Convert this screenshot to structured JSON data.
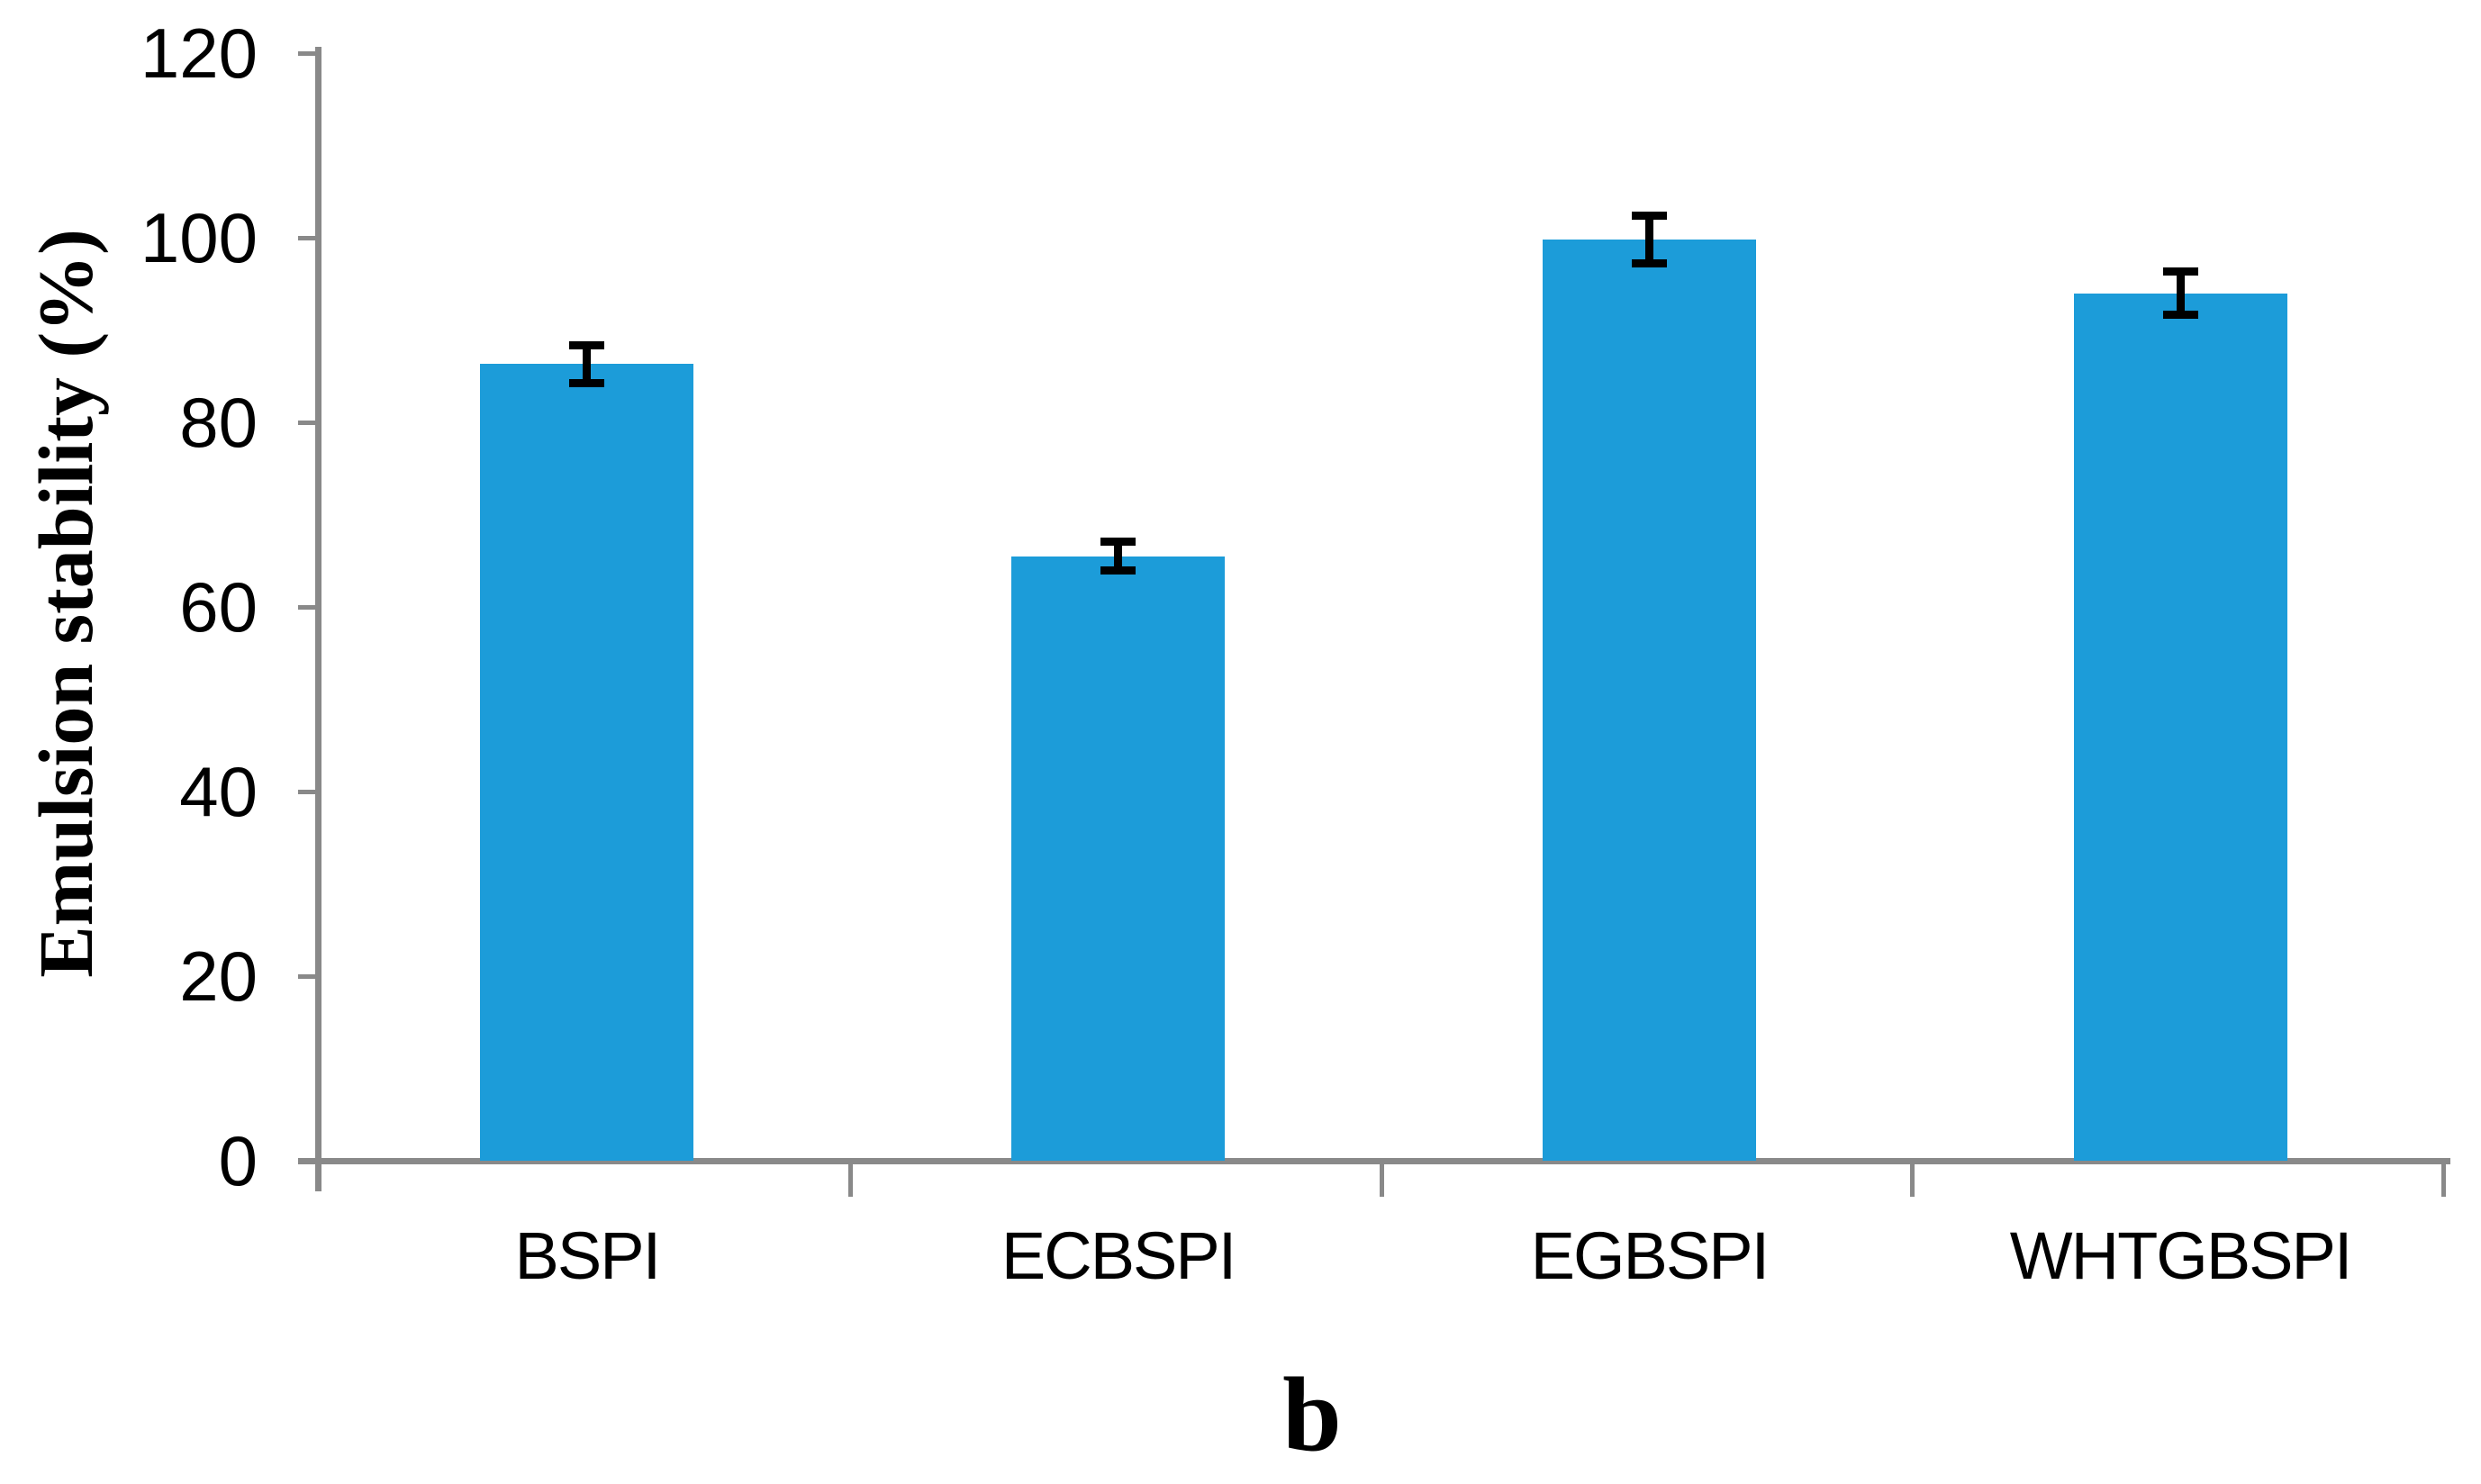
{
  "chart_data": {
    "type": "bar",
    "title": "",
    "caption": "b",
    "ylabel": "Emulsion stability (%)",
    "xlabel": "",
    "categories": [
      "BSPI",
      "ECBSPI",
      "EGBSPI",
      "WHTGBSPI"
    ],
    "values": [
      86.3,
      65.5,
      99.8,
      94.0
    ],
    "error_bars": [
      2.5,
      2.0,
      3.0,
      2.8
    ],
    "ylim": [
      0,
      120
    ],
    "y_ticks": [
      0,
      20,
      40,
      60,
      80,
      100,
      120
    ],
    "grid": false,
    "legend": "none",
    "colors": {
      "bar_fill": "#1C9CD9",
      "axis": "#898989",
      "error_bar": "#000000",
      "text": "#000000"
    }
  }
}
